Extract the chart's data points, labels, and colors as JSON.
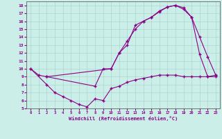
{
  "xlabel": "Windchill (Refroidissement éolien,°C)",
  "bg_color": "#cceee8",
  "line_color": "#880088",
  "xlim": [
    -0.5,
    23.5
  ],
  "ylim": [
    5,
    18.5
  ],
  "xticks": [
    0,
    1,
    2,
    3,
    4,
    5,
    6,
    7,
    8,
    9,
    10,
    11,
    12,
    13,
    14,
    15,
    16,
    17,
    18,
    19,
    20,
    21,
    22,
    23
  ],
  "yticks": [
    5,
    6,
    7,
    8,
    9,
    10,
    11,
    12,
    13,
    14,
    15,
    16,
    17,
    18
  ],
  "line1_x": [
    0,
    1,
    2,
    10,
    11,
    12,
    13,
    14,
    15,
    16,
    17,
    18,
    19,
    20,
    21,
    22,
    23
  ],
  "line1_y": [
    10,
    9.2,
    9.0,
    10.0,
    12.0,
    13.0,
    15.5,
    16.0,
    16.5,
    17.3,
    17.8,
    18.0,
    17.7,
    16.5,
    14.0,
    11.5,
    9.2
  ],
  "line2_x": [
    0,
    2,
    3,
    4,
    5,
    6,
    7,
    8,
    9,
    10,
    11,
    12,
    13,
    14,
    15,
    16,
    17,
    18,
    19,
    20,
    21,
    22,
    23
  ],
  "line2_y": [
    10,
    8.0,
    7.0,
    6.5,
    6.0,
    5.5,
    5.2,
    6.2,
    6.0,
    7.5,
    7.8,
    8.3,
    8.6,
    8.8,
    9.0,
    9.2,
    9.2,
    9.2,
    9.0,
    9.0,
    9.0,
    9.0,
    9.0
  ],
  "line3_x": [
    2,
    8,
    9,
    10,
    11,
    12,
    13,
    14,
    15,
    16,
    17,
    18,
    19,
    20,
    21,
    22,
    23
  ],
  "line3_y": [
    9.0,
    7.8,
    10.0,
    10.0,
    12.0,
    13.5,
    15.0,
    16.0,
    16.5,
    17.2,
    17.8,
    18.0,
    17.5,
    16.5,
    11.8,
    9.0,
    9.2
  ]
}
